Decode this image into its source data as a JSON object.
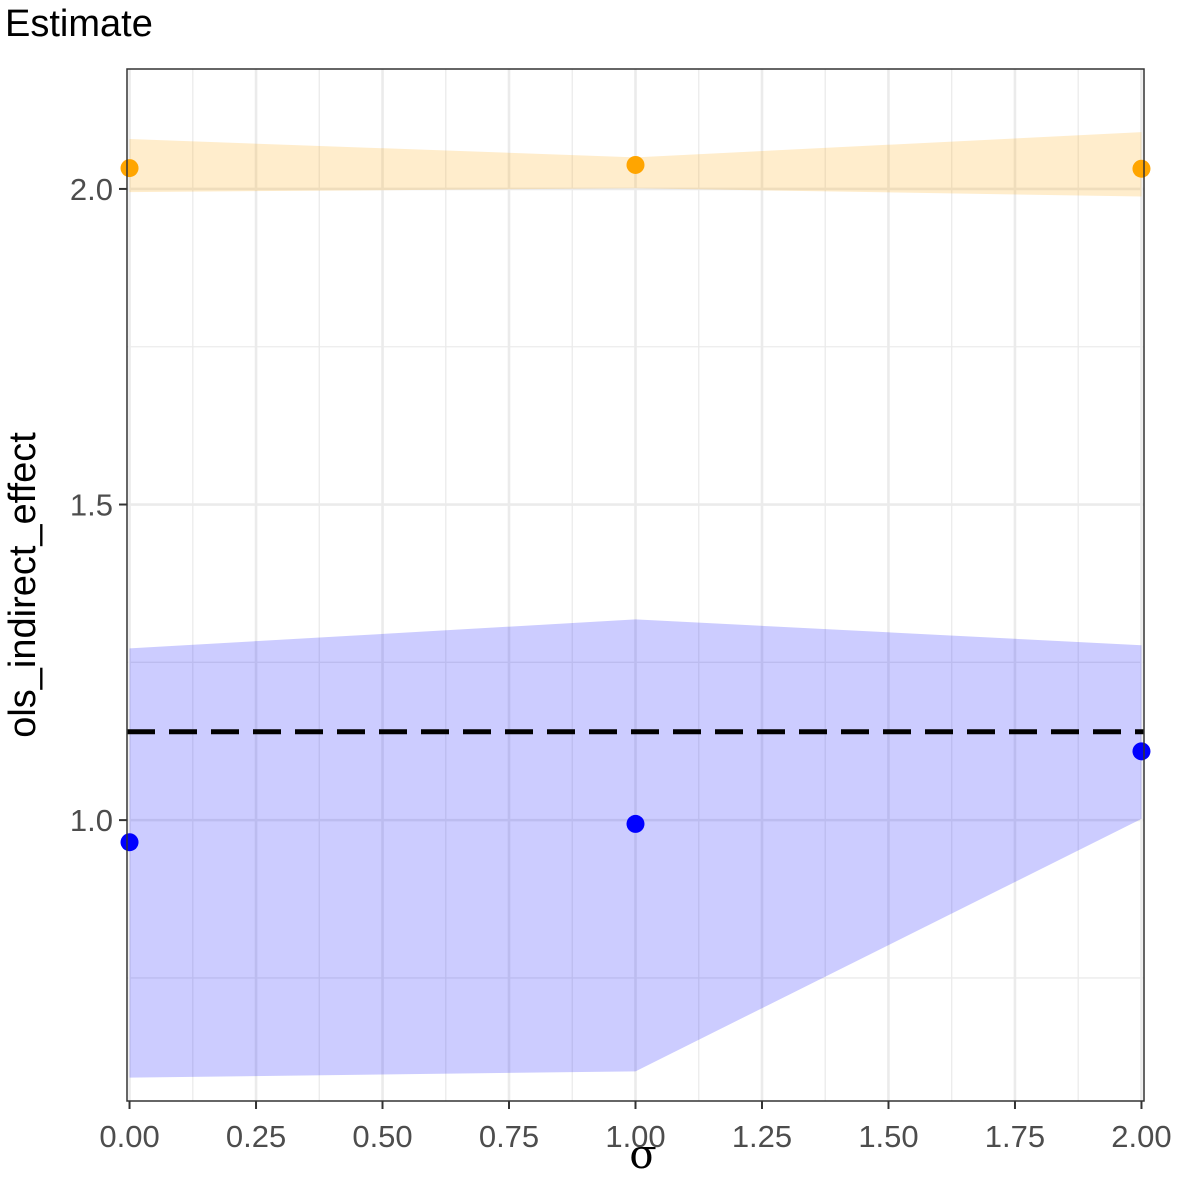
{
  "chart_data": {
    "type": "line",
    "title": "Estimate",
    "xlabel": "σ",
    "ylabel": "ols_indirect_effect",
    "x": [
      0.0,
      1.0,
      2.0
    ],
    "xlim": [
      -0.005,
      2.005
    ],
    "ylim": [
      0.555,
      2.19
    ],
    "x_ticks": [
      0.0,
      0.25,
      0.5,
      0.75,
      1.0,
      1.25,
      1.5,
      1.75,
      2.0
    ],
    "x_tick_labels": [
      "0.00",
      "0.25",
      "0.50",
      "0.75",
      "1.00",
      "1.25",
      "1.50",
      "1.75",
      "2.00"
    ],
    "y_ticks": [
      1.0,
      1.5,
      2.0
    ],
    "y_tick_labels": [
      "1.0",
      "1.5",
      "2.0"
    ],
    "y_minor_ticks": [
      0.75,
      1.25,
      1.75
    ],
    "grid": true,
    "series": [
      {
        "color": "#ffa500",
        "band_color": "#ffa500",
        "values": [
          2.033,
          2.038,
          2.032
        ],
        "lower": [
          1.995,
          2.001,
          1.988
        ],
        "upper": [
          2.079,
          2.05,
          2.09
        ]
      },
      {
        "color": "#0000ff",
        "band_color": "#0000ff",
        "values": [
          0.965,
          0.994,
          1.109
        ],
        "lower": [
          0.592,
          0.602,
          1.002
        ],
        "upper": [
          1.272,
          1.318,
          1.277
        ]
      }
    ],
    "reference_line": {
      "y": 1.14,
      "style": "dashed",
      "color": "#000000"
    }
  }
}
